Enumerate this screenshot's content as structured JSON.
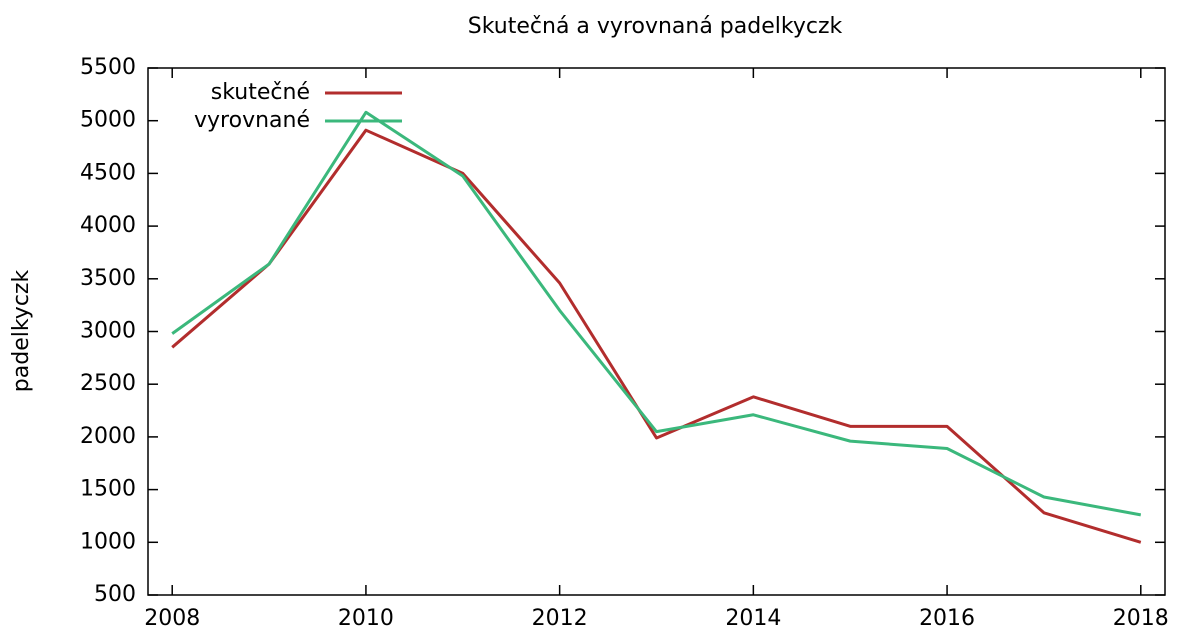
{
  "chart_data": {
    "type": "line",
    "title": "Skutečná a vyrovnaná padelkyczk",
    "y_label": "padelkyczk",
    "x": [
      2008,
      2009,
      2010,
      2011,
      2012,
      2013,
      2014,
      2015,
      2016,
      2017,
      2018
    ],
    "series": [
      {
        "name": "skutečné",
        "color": "#b22d2d",
        "values": [
          2850,
          3640,
          4910,
          4500,
          3460,
          1990,
          2380,
          2100,
          2100,
          1280,
          1000
        ]
      },
      {
        "name": "vyrovnané",
        "color": "#3bb87c",
        "values": [
          2980,
          3640,
          5080,
          4475,
          3200,
          2050,
          2210,
          1960,
          1890,
          1430,
          1260
        ]
      }
    ],
    "xlim": [
      2007.75,
      2018.25
    ],
    "xticks": [
      2008,
      2010,
      2012,
      2014,
      2016,
      2018
    ],
    "ylim": [
      500,
      5500
    ],
    "yticks": [
      500,
      1000,
      1500,
      2000,
      2500,
      3000,
      3500,
      4000,
      4500,
      5000,
      5500
    ],
    "legend": "top-left"
  }
}
